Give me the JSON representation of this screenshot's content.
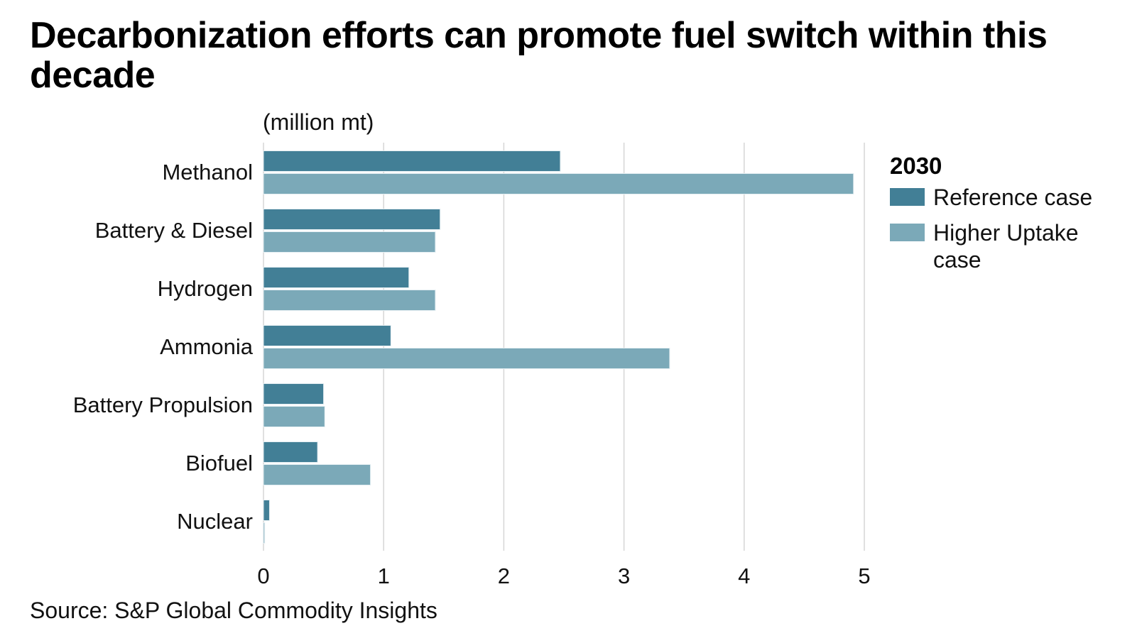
{
  "title": "Decarbonization efforts can promote fuel switch within this decade",
  "unit_label": "(million mt)",
  "source": "Source: S&P Global Commodity Insights",
  "colors": {
    "reference": "#427F96",
    "higher": "#7BA9B8",
    "grid": "#d6d6d6"
  },
  "chart_data": {
    "type": "bar",
    "orientation": "horizontal",
    "title": "Decarbonization efforts can promote fuel switch within this decade",
    "xlabel": "(million mt)",
    "ylabel": "",
    "categories": [
      "Methanol",
      "Battery & Diesel",
      "Hydrogen",
      "Ammonia",
      "Battery Propulsion",
      "Biofuel",
      "Nuclear"
    ],
    "series": [
      {
        "name": "Reference case",
        "values": [
          2.47,
          1.47,
          1.21,
          1.06,
          0.5,
          0.45,
          0.05
        ]
      },
      {
        "name": "Higher Uptake case",
        "values": [
          4.91,
          1.43,
          1.43,
          3.38,
          0.51,
          0.89,
          0.01
        ]
      }
    ],
    "xlim": [
      0,
      5
    ],
    "xticks": [
      "0",
      "1",
      "2",
      "3",
      "4",
      "5"
    ],
    "grid": true,
    "legend": {
      "title": "2030",
      "placement": "right"
    }
  }
}
